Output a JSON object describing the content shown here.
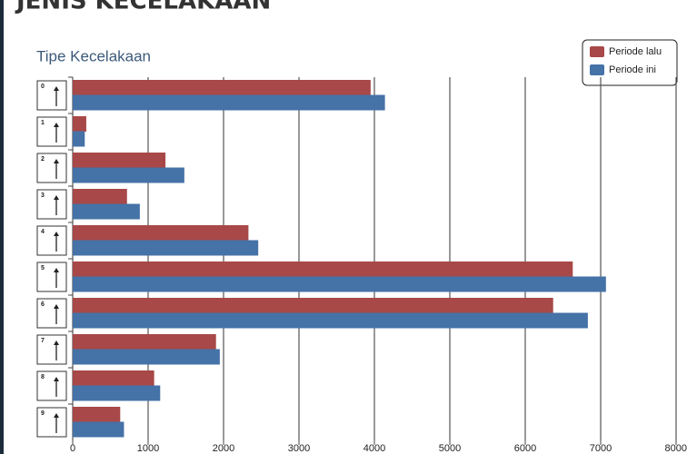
{
  "chart_data": {
    "type": "bar",
    "orientation": "horizontal",
    "title": "JENIS KECELAKAAN",
    "subtitle": "Tipe Kecelakaan",
    "categories": [
      "0",
      "1",
      "2",
      "3",
      "4",
      "5",
      "6",
      "7",
      "8",
      "9"
    ],
    "series": [
      {
        "name": "Periode lalu",
        "color": "#a84848",
        "values": [
          3950,
          180,
          1230,
          720,
          2330,
          6630,
          6370,
          1900,
          1080,
          630
        ]
      },
      {
        "name": "Periode ini",
        "color": "#4572a7",
        "values": [
          4140,
          160,
          1480,
          890,
          2460,
          7070,
          6830,
          1950,
          1160,
          680
        ]
      }
    ],
    "xlim": [
      0,
      8000
    ],
    "xticks": [
      0,
      1000,
      2000,
      3000,
      4000,
      5000,
      6000,
      7000,
      8000
    ],
    "grid": true,
    "legend": "top-right"
  }
}
